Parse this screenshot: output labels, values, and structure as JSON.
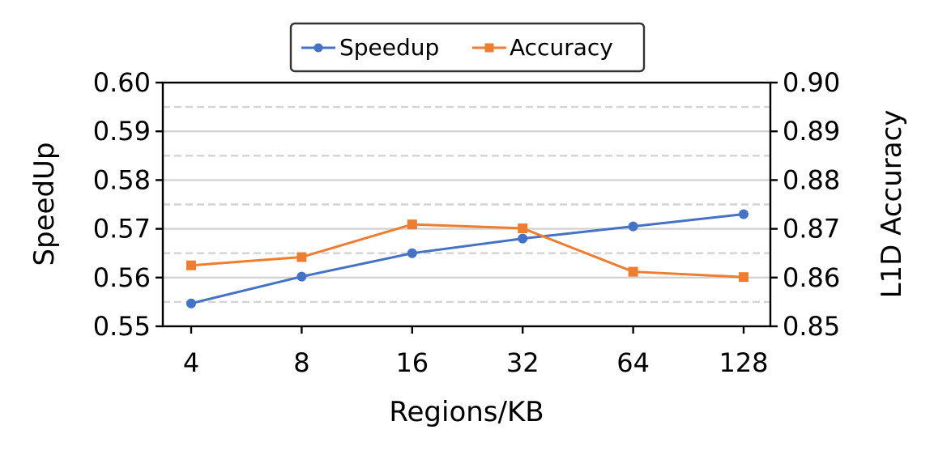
{
  "chart_data": {
    "type": "line",
    "xlabel": "Regions/KB",
    "ylabel_left": "SpeedUp",
    "ylabel_right": "L1D Accuracy",
    "categories": [
      "4",
      "8",
      "16",
      "32",
      "64",
      "128"
    ],
    "ylim_left": [
      0.55,
      0.6
    ],
    "ylim_right": [
      0.85,
      0.9
    ],
    "yticks_left": [
      "0.55",
      "0.56",
      "0.57",
      "0.58",
      "0.59",
      "0.60"
    ],
    "yticks_right": [
      "0.85",
      "0.86",
      "0.87",
      "0.88",
      "0.89",
      "0.90"
    ],
    "grid": true,
    "legend_position": "top-center",
    "series": [
      {
        "name": "Speedup",
        "axis": "left",
        "marker": "circle",
        "color": "#4472c4",
        "values": [
          0.5547,
          0.5602,
          0.565,
          0.568,
          0.5705,
          0.573
        ]
      },
      {
        "name": "Accuracy",
        "axis": "right",
        "marker": "square",
        "color": "#ed7d31",
        "values": [
          0.8625,
          0.8642,
          0.8709,
          0.8701,
          0.8612,
          0.8601
        ]
      }
    ]
  }
}
